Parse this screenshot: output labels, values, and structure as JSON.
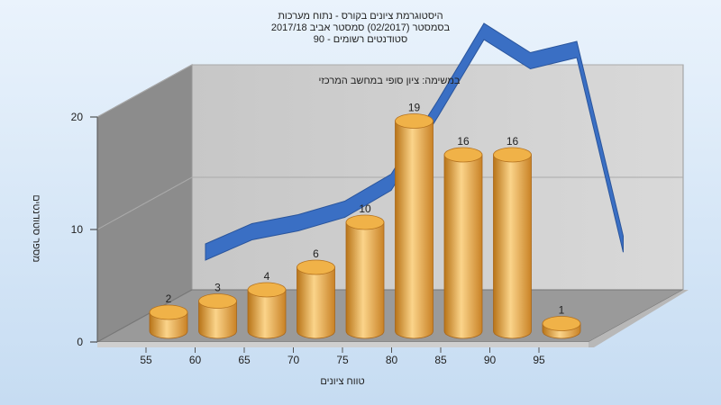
{
  "chart_data": {
    "type": "bar",
    "title_lines": [
      "היסטוגרמת ציונים בקורס - נתוח מערכות",
      "בסמסטר  (02/2017)  סמסטר אביב 2017/18",
      "סטודנטים רשומים - 90"
    ],
    "subtitle": "במשימה: ציון סופי במחשב המרכזי",
    "xlabel": "טווח ציונים",
    "ylabel": "מספר סטודנטים",
    "categories": [
      "55",
      "60",
      "65",
      "70",
      "75",
      "80",
      "85",
      "90",
      "95"
    ],
    "values": [
      2,
      3,
      4,
      6,
      10,
      19,
      16,
      16,
      1
    ],
    "ylim": [
      0,
      20
    ],
    "yticks": [
      0,
      10,
      20
    ],
    "curve": [
      2.8,
      4.6,
      5.4,
      6.6,
      9.0,
      15.5,
      22.4,
      19.8,
      20.8,
      3.5
    ],
    "colors": {
      "bar": "#e8a640",
      "curve": "#3a6fc4"
    }
  }
}
